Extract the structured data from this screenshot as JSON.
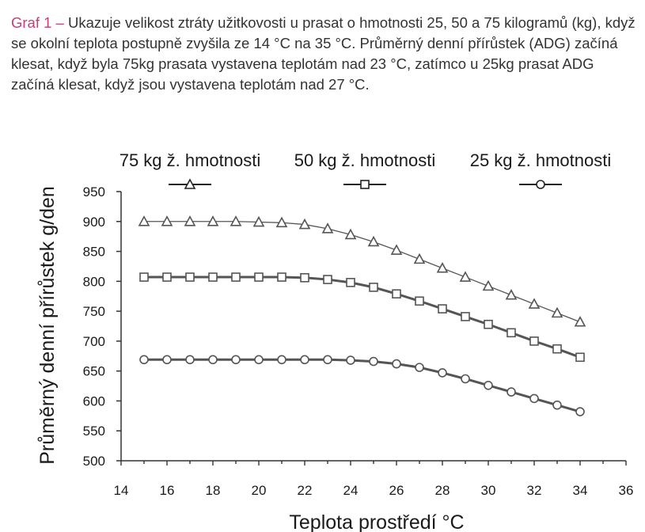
{
  "caption": {
    "lead": "Graf 1 –",
    "text": "Ukazuje velikost ztráty užitkovosti u prasat o hmotnosti 25, 50 a 75 kilogramů (kg), když se okolní teplota postupně zvyšila ze 14 °C na 35 °C. Průměrný denní přírůstek (ADG) začíná klesat, když byla 75kg prasata vystavena teplotám nad 23 °C, zatímco u 25kg prasat ADG začíná klesat, když jsou vystavena teplotám nad 27 °C."
  },
  "colors": {
    "series": "#555555",
    "axis": "#333333",
    "lead": "#c2407a"
  },
  "chart_data": {
    "type": "line",
    "title": "",
    "xlabel": "Teplota prostředí °C",
    "ylabel": "Průměrný denní přírůstek g/den",
    "xlim": [
      14,
      36
    ],
    "ylim": [
      500,
      950
    ],
    "xticks": [
      14,
      16,
      18,
      20,
      22,
      24,
      26,
      28,
      30,
      32,
      34,
      36
    ],
    "yticks": [
      500,
      550,
      600,
      650,
      700,
      750,
      800,
      850,
      900,
      950
    ],
    "grid": false,
    "legend_position": "top",
    "x": [
      15,
      16,
      17,
      18,
      19,
      20,
      21,
      22,
      23,
      24,
      25,
      26,
      27,
      28,
      29,
      30,
      31,
      32,
      33,
      34
    ],
    "series": [
      {
        "name": "75 kg ž. hmotnosti",
        "marker": "triangle",
        "line_weight": "thin",
        "values": [
          900,
          900,
          900,
          900,
          900,
          899,
          898,
          895,
          888,
          878,
          866,
          852,
          837,
          822,
          807,
          792,
          777,
          762,
          747,
          732
        ]
      },
      {
        "name": "50 kg ž. hmotnosti",
        "marker": "square",
        "line_weight": "thick",
        "values": [
          807,
          807,
          807,
          807,
          807,
          807,
          807,
          806,
          803,
          798,
          790,
          779,
          767,
          754,
          741,
          728,
          714,
          700,
          687,
          673
        ]
      },
      {
        "name": "25 kg ž. hmotnosti",
        "marker": "circle",
        "line_weight": "thick",
        "values": [
          669,
          669,
          669,
          669,
          669,
          669,
          669,
          669,
          669,
          668,
          666,
          662,
          656,
          647,
          637,
          626,
          615,
          604,
          593,
          582
        ]
      }
    ]
  }
}
